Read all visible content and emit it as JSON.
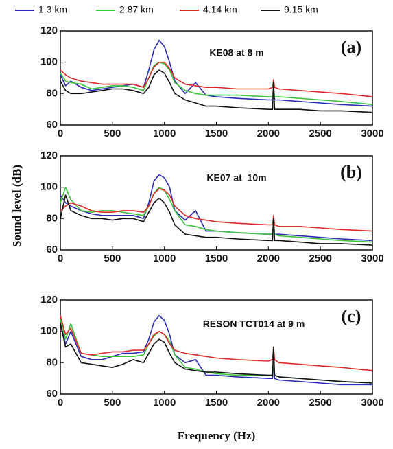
{
  "chart_data": [
    {
      "type": "line",
      "label": "(a)",
      "annotation": "KE08 at 8 m",
      "x": [
        0,
        50,
        100,
        200,
        300,
        400,
        500,
        600,
        700,
        800,
        850,
        900,
        950,
        1000,
        1050,
        1100,
        1200,
        1300,
        1400,
        1500,
        1700,
        2000,
        2040,
        2050,
        2060,
        2100,
        2300,
        2500,
        2700,
        3000
      ],
      "xlim": [
        0,
        3000
      ],
      "xticks": [
        0,
        500,
        1000,
        1500,
        2000,
        2500,
        3000
      ],
      "ylim": [
        60,
        120
      ],
      "yticks": [
        60,
        80,
        100,
        120
      ],
      "series": [
        {
          "name": "1.3 km",
          "color": "#2b2bb8",
          "values": [
            92,
            85,
            88,
            84,
            82,
            83,
            84,
            85,
            86,
            84,
            95,
            108,
            114,
            110,
            100,
            88,
            80,
            87,
            79,
            78,
            77,
            76,
            76,
            84,
            76,
            76,
            75,
            74,
            73,
            72
          ]
        },
        {
          "name": "2.87 km",
          "color": "#3cc43c",
          "values": [
            93,
            88,
            87,
            86,
            83,
            84,
            85,
            85,
            84,
            82,
            90,
            98,
            100,
            99,
            95,
            87,
            82,
            80,
            79,
            79,
            79,
            78,
            78,
            84,
            78,
            78,
            77,
            76,
            75,
            73
          ]
        },
        {
          "name": "4.14 km",
          "color": "#e02a2a",
          "values": [
            95,
            92,
            90,
            88,
            87,
            86,
            86,
            86,
            86,
            84,
            90,
            97,
            100,
            100,
            96,
            90,
            86,
            85,
            84,
            84,
            83,
            83,
            84,
            89,
            84,
            83,
            82,
            81,
            80,
            78
          ]
        },
        {
          "name": "9.15 km",
          "color": "#111111",
          "values": [
            88,
            82,
            80,
            80,
            81,
            82,
            83,
            83,
            82,
            80,
            84,
            92,
            95,
            93,
            87,
            80,
            76,
            74,
            72,
            72,
            71,
            70,
            70,
            87,
            70,
            70,
            70,
            69,
            69,
            68
          ]
        }
      ]
    },
    {
      "type": "line",
      "label": "(b)",
      "annotation": "KE07 at  10m",
      "y_label": "Sound level (dB)",
      "x": [
        0,
        50,
        100,
        200,
        300,
        400,
        500,
        600,
        700,
        800,
        850,
        900,
        950,
        1000,
        1050,
        1100,
        1200,
        1300,
        1400,
        1500,
        1700,
        2000,
        2040,
        2050,
        2060,
        2100,
        2300,
        2500,
        2700,
        3000
      ],
      "xlim": [
        0,
        3000
      ],
      "xticks": [
        0,
        500,
        1000,
        1500,
        2000,
        2500,
        3000
      ],
      "ylim": [
        60,
        120
      ],
      "yticks": [
        60,
        80,
        100,
        120
      ],
      "series": [
        {
          "name": "1.3 km",
          "color": "#2b2bb8",
          "values": [
            95,
            90,
            88,
            85,
            83,
            82,
            82,
            82,
            82,
            80,
            90,
            104,
            108,
            106,
            100,
            85,
            79,
            85,
            72,
            72,
            71,
            70,
            70,
            78,
            70,
            70,
            69,
            68,
            67,
            66
          ]
        },
        {
          "name": "2.87 km",
          "color": "#3cc43c",
          "values": [
            90,
            100,
            92,
            85,
            84,
            85,
            85,
            84,
            83,
            82,
            88,
            96,
            100,
            98,
            92,
            85,
            76,
            75,
            73,
            72,
            71,
            70,
            70,
            79,
            70,
            69,
            68,
            67,
            66,
            65
          ]
        },
        {
          "name": "4.14 km",
          "color": "#e02a2a",
          "values": [
            85,
            88,
            90,
            88,
            85,
            84,
            84,
            85,
            85,
            84,
            88,
            96,
            99,
            98,
            95,
            88,
            82,
            80,
            79,
            78,
            77,
            76,
            76,
            82,
            76,
            75,
            75,
            74,
            73,
            72
          ]
        },
        {
          "name": "9.15 km",
          "color": "#111111",
          "values": [
            80,
            95,
            85,
            82,
            80,
            80,
            79,
            80,
            80,
            78,
            84,
            90,
            93,
            90,
            84,
            76,
            70,
            69,
            68,
            68,
            67,
            66,
            66,
            80,
            66,
            66,
            65,
            64,
            64,
            63
          ]
        }
      ]
    },
    {
      "type": "line",
      "label": "(c)",
      "annotation": "RESON TCT014 at 9 m",
      "x_label": "Frequency (Hz)",
      "x": [
        0,
        50,
        100,
        200,
        300,
        400,
        500,
        600,
        700,
        800,
        850,
        900,
        950,
        1000,
        1050,
        1100,
        1200,
        1300,
        1400,
        1500,
        1700,
        2000,
        2040,
        2050,
        2060,
        2100,
        2300,
        2500,
        2700,
        3000
      ],
      "xlim": [
        0,
        3000
      ],
      "xticks": [
        0,
        500,
        1000,
        1500,
        2000,
        2500,
        3000
      ],
      "ylim": [
        60,
        120
      ],
      "yticks": [
        60,
        80,
        100,
        120
      ],
      "series": [
        {
          "name": "1.3 km",
          "color": "#2b2bb8",
          "values": [
            105,
            92,
            100,
            84,
            82,
            82,
            84,
            86,
            86,
            87,
            95,
            106,
            110,
            107,
            98,
            85,
            80,
            82,
            72,
            72,
            71,
            70,
            70,
            80,
            70,
            69,
            68,
            67,
            66,
            66
          ]
        },
        {
          "name": "2.87 km",
          "color": "#3cc43c",
          "values": [
            108,
            95,
            105,
            86,
            85,
            84,
            84,
            84,
            84,
            85,
            92,
            97,
            100,
            98,
            94,
            85,
            77,
            76,
            74,
            73,
            72,
            72,
            72,
            82,
            72,
            71,
            70,
            69,
            68,
            67
          ]
        },
        {
          "name": "4.14 km",
          "color": "#e02a2a",
          "values": [
            110,
            98,
            102,
            86,
            85,
            86,
            87,
            87,
            88,
            88,
            92,
            98,
            100,
            98,
            92,
            88,
            86,
            85,
            84,
            83,
            82,
            81,
            82,
            90,
            82,
            80,
            79,
            78,
            77,
            75
          ]
        },
        {
          "name": "9.15 km",
          "color": "#111111",
          "values": [
            105,
            90,
            92,
            80,
            79,
            78,
            77,
            79,
            82,
            80,
            86,
            92,
            95,
            93,
            86,
            80,
            76,
            75,
            74,
            74,
            73,
            72,
            72,
            90,
            72,
            71,
            70,
            69,
            68,
            67
          ]
        }
      ]
    }
  ]
}
